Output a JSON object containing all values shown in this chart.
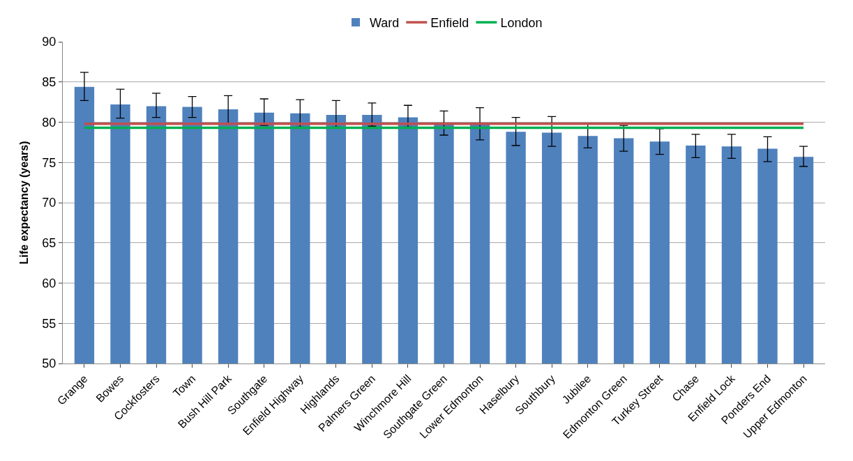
{
  "chart_data": {
    "type": "bar",
    "ylabel": "Life expectancy (years)",
    "categories": [
      "Grange",
      "Bowes",
      "Cockfosters",
      "Town",
      "Bush Hill Park",
      "Southgate",
      "Enfield Highway",
      "Highlands",
      "Palmers Green",
      "Winchmore Hill",
      "Southgate Green",
      "Lower Edmonton",
      "Haselbury",
      "Southbury",
      "Jubilee",
      "Edmonton Green",
      "Turkey Street",
      "Chase",
      "Enfield Lock",
      "Ponders End",
      "Upper Edmonton"
    ],
    "series": [
      {
        "name": "Ward",
        "color": "#4f81bd",
        "values": [
          84.4,
          82.2,
          82.0,
          81.9,
          81.6,
          81.2,
          81.1,
          80.9,
          80.9,
          80.6,
          79.8,
          79.8,
          78.8,
          78.7,
          78.3,
          78.0,
          77.6,
          77.1,
          77.0,
          76.7,
          75.7
        ],
        "errors": [
          [
            82.7,
            86.2
          ],
          [
            80.5,
            84.1
          ],
          [
            80.6,
            83.6
          ],
          [
            80.6,
            83.2
          ],
          [
            79.9,
            83.3
          ],
          [
            79.6,
            82.9
          ],
          [
            79.4,
            82.8
          ],
          [
            79.4,
            82.7
          ],
          [
            79.5,
            82.4
          ],
          [
            79.4,
            82.1
          ],
          [
            78.4,
            81.4
          ],
          [
            77.8,
            81.8
          ],
          [
            77.1,
            80.6
          ],
          [
            77.0,
            80.7
          ],
          [
            76.8,
            79.8
          ],
          [
            76.4,
            79.6
          ],
          [
            76.0,
            79.2
          ],
          [
            75.6,
            78.5
          ],
          [
            75.5,
            78.5
          ],
          [
            75.1,
            78.2
          ],
          [
            74.5,
            77.0
          ]
        ]
      },
      {
        "name": "Enfield",
        "type": "line",
        "color": "#c0504d",
        "values": [
          79.8,
          79.8,
          79.8,
          79.8,
          79.8,
          79.8,
          79.8,
          79.8,
          79.8,
          79.8,
          79.8,
          79.8,
          79.8,
          79.8,
          79.8,
          79.8,
          79.8,
          79.8,
          79.8,
          79.8,
          79.8
        ]
      },
      {
        "name": "London",
        "type": "line",
        "color": "#00b050",
        "values": [
          79.3,
          79.3,
          79.3,
          79.3,
          79.3,
          79.3,
          79.3,
          79.3,
          79.3,
          79.3,
          79.3,
          79.3,
          79.3,
          79.3,
          79.3,
          79.3,
          79.3,
          79.3,
          79.3,
          79.3,
          79.3
        ]
      }
    ],
    "ylim": [
      50,
      90
    ],
    "yticks": [
      50,
      55,
      60,
      65,
      70,
      75,
      80,
      85,
      90
    ],
    "grid": "y",
    "legend": "top",
    "marker": "none",
    "line_style": "solid"
  }
}
